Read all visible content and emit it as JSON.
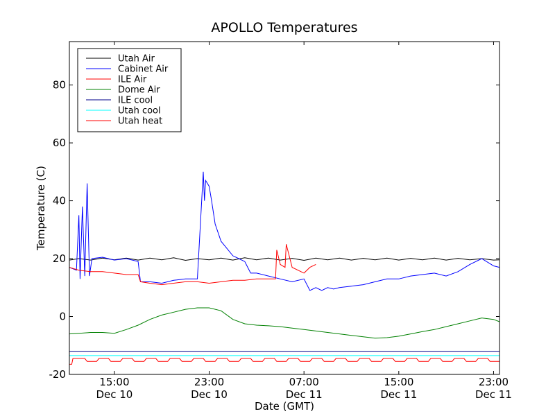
{
  "chart_data": {
    "type": "line",
    "title": "APOLLO Temperatures",
    "xlabel": "Date (GMT)",
    "ylabel": "Temperature (C)",
    "ylim": [
      -20,
      95
    ],
    "xlim": [
      11.2,
      47.5
    ],
    "legend_position": "top-left",
    "grid": false,
    "x_ticks": [
      {
        "value": 15,
        "line1": "15:00",
        "line2": "Dec 10"
      },
      {
        "value": 23,
        "line1": "23:00",
        "line2": "Dec 10"
      },
      {
        "value": 31,
        "line1": "07:00",
        "line2": "Dec 11"
      },
      {
        "value": 39,
        "line1": "15:00",
        "line2": "Dec 11"
      },
      {
        "value": 47,
        "line1": "23:00",
        "line2": "Dec 11"
      }
    ],
    "y_ticks": [
      {
        "value": 80,
        "label": "80"
      },
      {
        "value": 60,
        "label": "60"
      },
      {
        "value": 40,
        "label": "40"
      },
      {
        "value": 20,
        "label": "20"
      },
      {
        "value": 0,
        "label": "0"
      },
      {
        "value": -20,
        "label": "-20"
      }
    ],
    "series": [
      {
        "name": "Utah Air",
        "color": "#000000",
        "x": [
          11.2,
          12,
          13,
          14,
          15,
          16,
          17,
          18,
          19,
          20,
          21,
          22,
          23,
          24,
          25,
          26,
          27,
          28,
          29,
          30,
          31,
          32,
          33,
          34,
          35,
          36,
          37,
          38,
          39,
          40,
          41,
          42,
          43,
          44,
          45,
          46,
          47,
          47.5
        ],
        "y": [
          19.5,
          20,
          19.5,
          20.2,
          19.6,
          20.2,
          19.5,
          20.2,
          19.6,
          20.3,
          19.4,
          20,
          19.6,
          20.2,
          19.5,
          20.3,
          19.6,
          20.2,
          19.5,
          20.1,
          19.4,
          20.2,
          19.6,
          20.2,
          19.5,
          20.1,
          19.6,
          20.2,
          19.5,
          20.1,
          19.6,
          20.2,
          19.5,
          20.1,
          19.6,
          20,
          19.5,
          19.6
        ]
      },
      {
        "name": "Cabinet Air",
        "color": "#0000ff",
        "x": [
          11.2,
          11.8,
          12.0,
          12.1,
          12.3,
          12.5,
          12.7,
          12.9,
          13.1,
          14.0,
          15.0,
          16.0,
          17.0,
          17.2,
          18.0,
          19.0,
          19.5,
          20.0,
          21.0,
          22.0,
          22.5,
          22.6,
          22.7,
          23.0,
          23.2,
          23.5,
          24.0,
          25.0,
          25.5,
          26.0,
          26.5,
          27.0,
          28.0,
          29.0,
          30.0,
          31.0,
          31.5,
          32.0,
          32.5,
          33.0,
          33.5,
          34.0,
          35.0,
          36.0,
          37.0,
          38.0,
          39.0,
          40.0,
          41.0,
          42.0,
          43.0,
          44.0,
          45.0,
          46.0,
          47.0,
          47.5
        ],
        "y": [
          17,
          16,
          35,
          13,
          38,
          14,
          46,
          14,
          20,
          20.5,
          19.5,
          20,
          19,
          12,
          12,
          11.5,
          12,
          12.5,
          13,
          13,
          50,
          40,
          47,
          45,
          40,
          32,
          26,
          21,
          20,
          19,
          15,
          15,
          14,
          13,
          12,
          13,
          9,
          10,
          9,
          10,
          9.5,
          10,
          10.5,
          11,
          12,
          13,
          13,
          14,
          14.5,
          15,
          14,
          15.5,
          18,
          20,
          17.5,
          17
        ]
      },
      {
        "name": "ILE Air",
        "color": "#ff0000",
        "x": [
          11.2,
          12,
          13,
          14,
          15,
          16,
          17,
          17.2,
          18,
          19,
          20,
          21,
          22,
          23,
          24,
          25,
          26,
          27,
          28,
          28.6,
          28.7,
          29,
          29.4,
          29.5,
          30,
          31,
          31.5,
          32
        ],
        "y": [
          17,
          16,
          15.5,
          15.5,
          15,
          14.5,
          14.5,
          12,
          11.5,
          11,
          11.5,
          12,
          12,
          11.5,
          12,
          12.5,
          12.5,
          13,
          13,
          13,
          23,
          18,
          17,
          25,
          17,
          15,
          17,
          18
        ]
      },
      {
        "name": "Dome Air",
        "color": "#008000",
        "x": [
          11.2,
          12,
          13,
          14,
          15,
          16,
          17,
          18,
          19,
          20,
          21,
          22,
          23,
          24,
          25,
          26,
          27,
          28,
          29,
          30,
          31,
          32,
          33,
          34,
          35,
          36,
          37,
          38,
          39,
          40,
          41,
          42,
          43,
          44,
          45,
          46,
          47,
          47.5
        ],
        "y": [
          -6,
          -5.8,
          -5.5,
          -5.5,
          -5.8,
          -4.5,
          -3,
          -1,
          0.5,
          1.5,
          2.5,
          3,
          3,
          2,
          -1,
          -2.5,
          -3,
          -3.2,
          -3.5,
          -4,
          -4.5,
          -5,
          -5.5,
          -6,
          -6.5,
          -7,
          -7.5,
          -7.3,
          -6.8,
          -6,
          -5.2,
          -4.5,
          -3.5,
          -2.5,
          -1.5,
          -0.5,
          -1,
          -1.8
        ]
      },
      {
        "name": "ILE cool",
        "color": "#00008b",
        "x": [
          11.2,
          47.5
        ],
        "y": [
          -12,
          -12
        ]
      },
      {
        "name": "Utah cool",
        "color": "#00ffff",
        "x": [
          11.2,
          47.5
        ],
        "y": [
          -13.5,
          -13.5
        ]
      },
      {
        "name": "Utah heat",
        "color": "#ff0000",
        "x": [
          11.2,
          11.4,
          11.5,
          12,
          12.5,
          12.7,
          13.5,
          13.7,
          14.5,
          14.7,
          15.5,
          15.7,
          16.5,
          16.7,
          17.5,
          17.7,
          18.5,
          18.7,
          19.5,
          19.7,
          20.5,
          20.7,
          21.5,
          21.7,
          22.5,
          22.7,
          23.5,
          23.7,
          24.5,
          24.7,
          25.5,
          25.7,
          26.5,
          26.7,
          27.5,
          27.7,
          28.5,
          28.7,
          29.5,
          29.7,
          30.5,
          30.7,
          31.5,
          31.7,
          32.5,
          32.7,
          33.5,
          33.7,
          34.5,
          34.7,
          35.5,
          35.7,
          36.5,
          36.7,
          37.5,
          37.7,
          38.5,
          38.7,
          39.5,
          39.7,
          40.5,
          40.7,
          41.5,
          41.7,
          42.5,
          42.7,
          43.5,
          43.7,
          44.5,
          44.7,
          45.5,
          45.7,
          46.5,
          46.7,
          47.5
        ],
        "y": [
          -16.5,
          -16.5,
          -14.5,
          -14.5,
          -14.5,
          -15.5,
          -15.5,
          -14.5,
          -14.5,
          -15.5,
          -15.5,
          -14.5,
          -14.5,
          -15.5,
          -15.5,
          -14.5,
          -14.5,
          -15.5,
          -15.5,
          -14.5,
          -14.5,
          -15.5,
          -15.5,
          -14.5,
          -14.5,
          -15.5,
          -15.5,
          -14.5,
          -14.5,
          -15.5,
          -15.5,
          -14.5,
          -14.5,
          -15.5,
          -15.5,
          -14.5,
          -14.5,
          -15.5,
          -15.5,
          -14.5,
          -14.5,
          -15.5,
          -15.5,
          -14.5,
          -14.5,
          -15.5,
          -15.5,
          -14.5,
          -14.5,
          -15.5,
          -15.5,
          -14.5,
          -14.5,
          -15.5,
          -15.5,
          -14.5,
          -14.5,
          -15.5,
          -15.5,
          -14.5,
          -14.5,
          -15.5,
          -15.5,
          -14.5,
          -14.5,
          -15.5,
          -15.5,
          -14.5,
          -14.5,
          -15.5,
          -15.5,
          -14.5,
          -14.5,
          -15.5,
          -15.5
        ]
      }
    ]
  }
}
